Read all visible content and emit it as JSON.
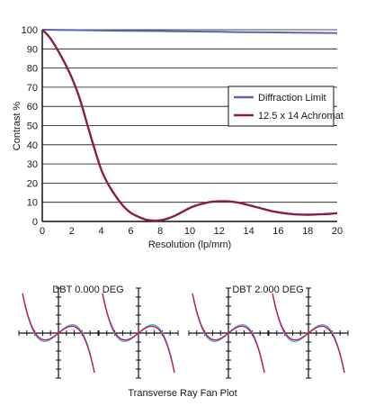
{
  "chart_data": {
    "type": "line",
    "xlabel": "Resolution (lp/mm)",
    "ylabel": "Contrast %",
    "xlim": [
      0,
      20
    ],
    "ylim": [
      0,
      100
    ],
    "x_ticks": [
      0,
      2,
      4,
      6,
      8,
      10,
      12,
      14,
      16,
      18,
      20
    ],
    "y_ticks": [
      0,
      10,
      20,
      30,
      40,
      50,
      60,
      70,
      80,
      90,
      100
    ],
    "grid": "horizontal",
    "legend": "right",
    "series": [
      {
        "name": "Diffraction Limit",
        "color": "#5a64b0",
        "x": [
          0,
          2,
          4,
          6,
          8,
          10,
          12,
          14,
          16,
          18,
          20
        ],
        "y": [
          100,
          99.8,
          99.6,
          99.4,
          99.3,
          99.1,
          98.9,
          98.7,
          98.6,
          98.4,
          98.2
        ]
      },
      {
        "name": "12.5 x 14 Achromat",
        "color": "#8b1a4e",
        "x": [
          0,
          0.5,
          1,
          1.5,
          2,
          2.5,
          3,
          3.5,
          4,
          4.5,
          5,
          5.5,
          6,
          6.5,
          7,
          7.5,
          8,
          8.5,
          9,
          9.5,
          10,
          10.5,
          11,
          11.5,
          12,
          12.5,
          13,
          13.5,
          14,
          14.5,
          15,
          15.5,
          16,
          16.5,
          17,
          17.5,
          18,
          18.5,
          19,
          19.5,
          20
        ],
        "y": [
          100,
          96,
          90,
          83,
          75,
          65,
          52,
          39,
          27,
          19,
          13,
          8,
          4.5,
          2.5,
          1,
          0.5,
          0.6,
          1.5,
          3,
          5,
          7,
          8.5,
          9.5,
          10.3,
          10.5,
          10.5,
          10.2,
          9.5,
          8.5,
          7.5,
          6.5,
          5.5,
          4.8,
          4.2,
          3.8,
          3.6,
          3.5,
          3.6,
          3.8,
          4.0,
          4.3
        ]
      }
    ]
  },
  "ray_fan": {
    "groups": [
      {
        "label": "DBT 0.000 DEG"
      },
      {
        "label": "DBT 2.000 DEG"
      }
    ],
    "caption": "Transverse Ray Fan Plot",
    "colors": {
      "blue": "#4fb3d9",
      "red": "#c2185b",
      "axis": "#111111"
    }
  }
}
